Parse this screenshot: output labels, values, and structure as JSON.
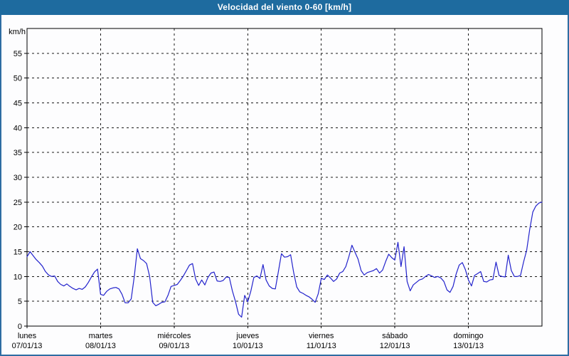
{
  "window": {
    "title": "Velocidad del viento 0-60 [km/h]"
  },
  "colors": {
    "titlebar": "#1e6b9f",
    "frame_border": "#2e6da3",
    "background": "#fdfdfe",
    "axis": "#000000",
    "gridline": "#1a1a1a",
    "line": "#2222cc"
  },
  "chart_data": {
    "type": "line",
    "title": "Velocidad del viento 0-60 [km/h]",
    "ylabel": "km/h",
    "ylim": [
      0,
      60
    ],
    "yticks": [
      0,
      5,
      10,
      15,
      20,
      25,
      30,
      35,
      40,
      45,
      50,
      55
    ],
    "grid": "dashed",
    "legend_position": "none",
    "hours_per_day": 24,
    "days": [
      {
        "name": "lunes",
        "date": "07/01/13"
      },
      {
        "name": "martes",
        "date": "08/01/13"
      },
      {
        "name": "miércoles",
        "date": "09/01/13"
      },
      {
        "name": "jueves",
        "date": "10/01/13"
      },
      {
        "name": "viernes",
        "date": "11/01/13"
      },
      {
        "name": "sábado",
        "date": "12/01/13"
      },
      {
        "name": "domingo",
        "date": "13/01/13"
      }
    ],
    "series": [
      {
        "name": "Velocidad del viento",
        "unit": "km/h",
        "color": "#2222cc",
        "values": [
          14,
          15,
          14.2,
          13.4,
          12.8,
          12.1,
          11,
          10.3,
          10,
          10.1,
          9,
          8.4,
          8.1,
          8.5,
          8,
          7.6,
          7.3,
          7.6,
          7.4,
          7.9,
          8.8,
          9.9,
          10.9,
          11.5,
          6.4,
          6.2,
          7,
          7.5,
          7.7,
          7.8,
          7.5,
          6.4,
          4.7,
          4.7,
          5.5,
          10,
          15.6,
          13.6,
          13.2,
          12.6,
          10,
          4.8,
          4.1,
          4.4,
          4.8,
          4.9,
          6.2,
          8,
          8.2,
          8.4,
          9.2,
          10.1,
          11.2,
          12.3,
          12.6,
          9.5,
          8.2,
          9.3,
          8.3,
          9.8,
          10.7,
          10.9,
          9.1,
          9,
          9.2,
          9.9,
          9.8,
          7.1,
          5,
          2.4,
          1.8,
          6.2,
          4.9,
          7,
          9.8,
          10.1,
          9.6,
          12.4,
          9.3,
          8.1,
          7.6,
          7.5,
          11,
          14.6,
          13.9,
          14,
          14.4,
          10.8,
          7.9,
          6.9,
          6.6,
          6.2,
          5.9,
          5.4,
          4.8,
          6.5,
          9.6,
          9.4,
          10.3,
          9.7,
          9,
          9.5,
          10.7,
          11,
          12,
          14,
          16.3,
          14.9,
          13.5,
          11.2,
          10.3,
          10.8,
          11,
          11.2,
          11.6,
          10.7,
          11.3,
          13,
          14.5,
          13.8,
          13.3,
          16.9,
          12,
          16,
          9,
          7.1,
          8.3,
          8.8,
          9.3,
          9.5,
          10,
          10.4,
          10.1,
          9.8,
          10,
          9.7,
          9,
          7.3,
          6.8,
          8,
          10.5,
          12.3,
          12.8,
          11.4,
          9.3,
          8.1,
          10.2,
          10.6,
          11,
          9,
          8.9,
          9.3,
          9.4,
          12.9,
          10.2,
          10,
          9.9,
          14.3,
          11.2,
          10,
          10,
          10.2,
          12.9,
          15.3,
          19.5,
          23,
          24.2,
          24.8,
          25
        ]
      }
    ]
  }
}
